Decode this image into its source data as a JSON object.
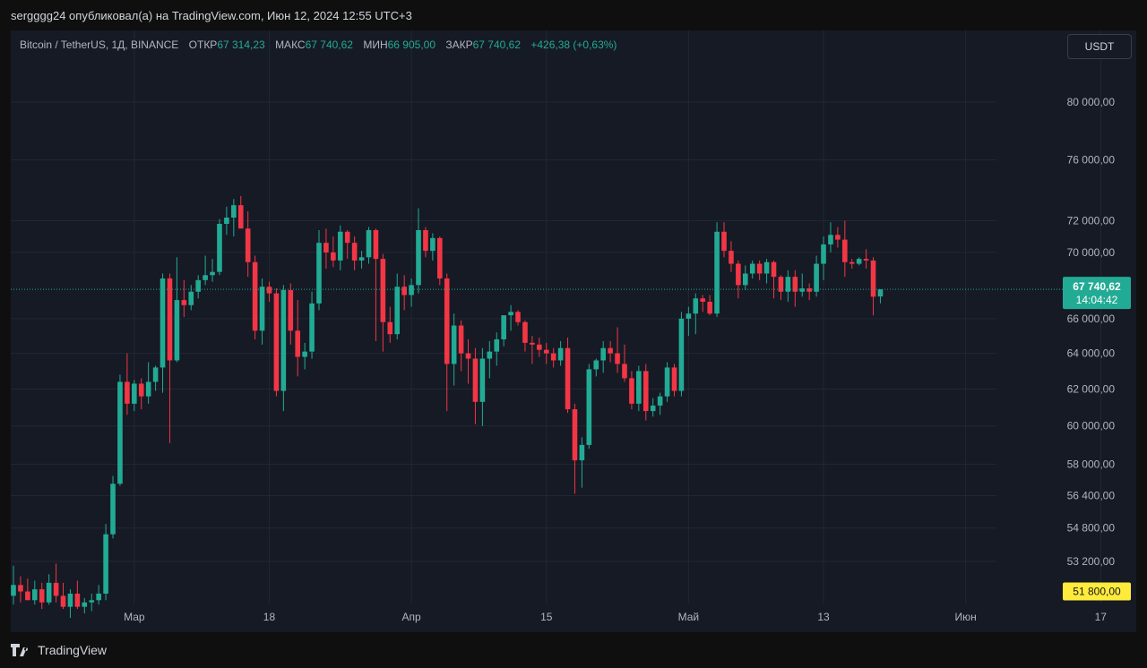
{
  "header": {
    "publisher_text": "sergggg24 опубликовал(а) на TradingView.com, Июн 12, 2024 12:55 UTC+3"
  },
  "legend": {
    "symbol": "Bitcoin / TetherUS, 1Д, BINANCE",
    "open_label": "ОТКР",
    "open_value": "67 314,23",
    "high_label": "МАКС",
    "high_value": "67 740,62",
    "low_label": "МИН",
    "low_value": "66 905,00",
    "close_label": "ЗАКР",
    "close_value": "67 740,62",
    "change": "+426,38 (+0,63%)"
  },
  "currency_button": "USDT",
  "price_badge": {
    "price": "67 740,62",
    "countdown": "14:04:42"
  },
  "crosshair_badge": "51 800,00",
  "colors": {
    "up": "#22ab94",
    "down": "#f23645",
    "background": "#161a25",
    "grid": "#232734",
    "text": "#b2b5be",
    "last_price": "#22ab94",
    "crosshair_badge": "#ffeb3b"
  },
  "footer": {
    "brand": "TradingView"
  },
  "chart_data": {
    "type": "candlestick",
    "scale": "log",
    "y_ticks": [
      "80 000,00",
      "76 000,00",
      "72 000,00",
      "70 000,00",
      "66 000,00",
      "64 000,00",
      "62 000,00",
      "60 000,00",
      "58 000,00",
      "56 400,00",
      "54 800,00",
      "53 200,00"
    ],
    "x_ticks": [
      "Мар",
      "18",
      "Апр",
      "15",
      "Май",
      "13",
      "Июн",
      "17"
    ],
    "grid": true,
    "candles": [
      {
        "o": 51600,
        "h": 53000,
        "l": 51200,
        "c": 52100
      },
      {
        "o": 52100,
        "h": 52500,
        "l": 51300,
        "c": 51800
      },
      {
        "o": 51800,
        "h": 52400,
        "l": 51400,
        "c": 51400
      },
      {
        "o": 51400,
        "h": 52300,
        "l": 51200,
        "c": 51900
      },
      {
        "o": 51900,
        "h": 52200,
        "l": 51000,
        "c": 51300
      },
      {
        "o": 51300,
        "h": 52600,
        "l": 51200,
        "c": 52200
      },
      {
        "o": 52200,
        "h": 53100,
        "l": 51300,
        "c": 51600
      },
      {
        "o": 51600,
        "h": 52200,
        "l": 51000,
        "c": 51100
      },
      {
        "o": 51100,
        "h": 51900,
        "l": 50600,
        "c": 51700
      },
      {
        "o": 51700,
        "h": 52300,
        "l": 51000,
        "c": 51100
      },
      {
        "o": 51100,
        "h": 51500,
        "l": 50800,
        "c": 51300
      },
      {
        "o": 51300,
        "h": 51700,
        "l": 50900,
        "c": 51400
      },
      {
        "o": 51400,
        "h": 52100,
        "l": 51200,
        "c": 51700
      },
      {
        "o": 51700,
        "h": 55000,
        "l": 51400,
        "c": 54500
      },
      {
        "o": 54500,
        "h": 57400,
        "l": 54300,
        "c": 57000
      },
      {
        "o": 57000,
        "h": 62800,
        "l": 56900,
        "c": 62400
      },
      {
        "o": 62400,
        "h": 64000,
        "l": 60600,
        "c": 61200
      },
      {
        "o": 61200,
        "h": 62500,
        "l": 60800,
        "c": 62300
      },
      {
        "o": 62300,
        "h": 62600,
        "l": 60900,
        "c": 61600
      },
      {
        "o": 61600,
        "h": 63500,
        "l": 61200,
        "c": 62400
      },
      {
        "o": 62400,
        "h": 63300,
        "l": 61900,
        "c": 63200
      },
      {
        "o": 63200,
        "h": 68700,
        "l": 61800,
        "c": 68400
      },
      {
        "o": 68400,
        "h": 68700,
        "l": 59100,
        "c": 63600
      },
      {
        "o": 63600,
        "h": 69700,
        "l": 63500,
        "c": 67100
      },
      {
        "o": 67100,
        "h": 68300,
        "l": 66100,
        "c": 66800
      },
      {
        "o": 66800,
        "h": 68000,
        "l": 66500,
        "c": 67600
      },
      {
        "o": 67600,
        "h": 68600,
        "l": 67200,
        "c": 68300
      },
      {
        "o": 68300,
        "h": 69800,
        "l": 68000,
        "c": 68600
      },
      {
        "o": 68600,
        "h": 69600,
        "l": 68200,
        "c": 68800
      },
      {
        "o": 68800,
        "h": 72100,
        "l": 68600,
        "c": 71800
      },
      {
        "o": 71800,
        "h": 72900,
        "l": 71100,
        "c": 72200
      },
      {
        "o": 72200,
        "h": 73400,
        "l": 71000,
        "c": 73000
      },
      {
        "o": 73000,
        "h": 73600,
        "l": 71700,
        "c": 71500
      },
      {
        "o": 71500,
        "h": 72600,
        "l": 68500,
        "c": 69400
      },
      {
        "o": 69400,
        "h": 69800,
        "l": 64800,
        "c": 65300
      },
      {
        "o": 65300,
        "h": 68400,
        "l": 64500,
        "c": 67900
      },
      {
        "o": 67900,
        "h": 68200,
        "l": 67000,
        "c": 67500
      },
      {
        "o": 67500,
        "h": 67800,
        "l": 61600,
        "c": 61900
      },
      {
        "o": 61900,
        "h": 68000,
        "l": 60800,
        "c": 67700
      },
      {
        "o": 67700,
        "h": 68100,
        "l": 64500,
        "c": 65300
      },
      {
        "o": 65300,
        "h": 67100,
        "l": 62700,
        "c": 63800
      },
      {
        "o": 63800,
        "h": 64600,
        "l": 63100,
        "c": 64100
      },
      {
        "o": 64100,
        "h": 67600,
        "l": 63700,
        "c": 66900
      },
      {
        "o": 66900,
        "h": 71400,
        "l": 66500,
        "c": 70600
      },
      {
        "o": 70600,
        "h": 71500,
        "l": 69000,
        "c": 70000
      },
      {
        "o": 70000,
        "h": 71000,
        "l": 69100,
        "c": 69500
      },
      {
        "o": 69500,
        "h": 71700,
        "l": 68900,
        "c": 71300
      },
      {
        "o": 71300,
        "h": 71400,
        "l": 69600,
        "c": 70600
      },
      {
        "o": 70600,
        "h": 71000,
        "l": 68900,
        "c": 69500
      },
      {
        "o": 69500,
        "h": 70100,
        "l": 69000,
        "c": 69700
      },
      {
        "o": 69700,
        "h": 71600,
        "l": 69300,
        "c": 71400
      },
      {
        "o": 71400,
        "h": 71500,
        "l": 64700,
        "c": 69600
      },
      {
        "o": 69600,
        "h": 69900,
        "l": 64100,
        "c": 65800
      },
      {
        "o": 65800,
        "h": 66700,
        "l": 64600,
        "c": 65100
      },
      {
        "o": 65100,
        "h": 68700,
        "l": 64800,
        "c": 67900
      },
      {
        "o": 67900,
        "h": 68600,
        "l": 66500,
        "c": 67400
      },
      {
        "o": 67400,
        "h": 68400,
        "l": 66700,
        "c": 68000
      },
      {
        "o": 68000,
        "h": 72800,
        "l": 67500,
        "c": 71400
      },
      {
        "o": 71400,
        "h": 71600,
        "l": 69700,
        "c": 70100
      },
      {
        "o": 70100,
        "h": 71200,
        "l": 69500,
        "c": 70900
      },
      {
        "o": 70900,
        "h": 71000,
        "l": 68000,
        "c": 68400
      },
      {
        "o": 68400,
        "h": 68700,
        "l": 60800,
        "c": 63400
      },
      {
        "o": 63400,
        "h": 66300,
        "l": 62200,
        "c": 65600
      },
      {
        "o": 65600,
        "h": 65900,
        "l": 63000,
        "c": 64000
      },
      {
        "o": 64000,
        "h": 64800,
        "l": 62300,
        "c": 63700
      },
      {
        "o": 63700,
        "h": 64300,
        "l": 60100,
        "c": 61300
      },
      {
        "o": 61300,
        "h": 64300,
        "l": 60000,
        "c": 63700
      },
      {
        "o": 63700,
        "h": 64700,
        "l": 62600,
        "c": 64100
      },
      {
        "o": 64100,
        "h": 65200,
        "l": 63300,
        "c": 64800
      },
      {
        "o": 64800,
        "h": 66200,
        "l": 64400,
        "c": 66200
      },
      {
        "o": 66200,
        "h": 66800,
        "l": 65300,
        "c": 66400
      },
      {
        "o": 66400,
        "h": 66500,
        "l": 65600,
        "c": 65800
      },
      {
        "o": 65800,
        "h": 65900,
        "l": 64100,
        "c": 64600
      },
      {
        "o": 64600,
        "h": 65000,
        "l": 63400,
        "c": 64500
      },
      {
        "o": 64500,
        "h": 64900,
        "l": 63800,
        "c": 64200
      },
      {
        "o": 64200,
        "h": 64600,
        "l": 63400,
        "c": 64000
      },
      {
        "o": 64000,
        "h": 64300,
        "l": 63200,
        "c": 63600
      },
      {
        "o": 63600,
        "h": 64700,
        "l": 63300,
        "c": 64300
      },
      {
        "o": 64300,
        "h": 64900,
        "l": 60700,
        "c": 60900
      },
      {
        "o": 60900,
        "h": 61200,
        "l": 56500,
        "c": 58200
      },
      {
        "o": 58200,
        "h": 59400,
        "l": 56800,
        "c": 59000
      },
      {
        "o": 59000,
        "h": 63400,
        "l": 58800,
        "c": 63100
      },
      {
        "o": 63100,
        "h": 63700,
        "l": 62700,
        "c": 63600
      },
      {
        "o": 63600,
        "h": 64700,
        "l": 62900,
        "c": 64300
      },
      {
        "o": 64300,
        "h": 64700,
        "l": 63500,
        "c": 64000
      },
      {
        "o": 64000,
        "h": 65500,
        "l": 62900,
        "c": 63400
      },
      {
        "o": 63400,
        "h": 64500,
        "l": 62400,
        "c": 62600
      },
      {
        "o": 62600,
        "h": 63000,
        "l": 60900,
        "c": 61200
      },
      {
        "o": 61200,
        "h": 63300,
        "l": 60800,
        "c": 63000
      },
      {
        "o": 63000,
        "h": 63400,
        "l": 60300,
        "c": 60800
      },
      {
        "o": 60800,
        "h": 61500,
        "l": 60500,
        "c": 61100
      },
      {
        "o": 61100,
        "h": 61800,
        "l": 60600,
        "c": 61600
      },
      {
        "o": 61600,
        "h": 63500,
        "l": 61300,
        "c": 63200
      },
      {
        "o": 63200,
        "h": 63400,
        "l": 61600,
        "c": 61900
      },
      {
        "o": 61900,
        "h": 66400,
        "l": 61600,
        "c": 66000
      },
      {
        "o": 66000,
        "h": 66700,
        "l": 65000,
        "c": 66300
      },
      {
        "o": 66300,
        "h": 67500,
        "l": 65100,
        "c": 67200
      },
      {
        "o": 67200,
        "h": 67400,
        "l": 66400,
        "c": 67000
      },
      {
        "o": 67000,
        "h": 67400,
        "l": 66200,
        "c": 66300
      },
      {
        "o": 66300,
        "h": 71900,
        "l": 66100,
        "c": 71300
      },
      {
        "o": 71300,
        "h": 71900,
        "l": 69700,
        "c": 70100
      },
      {
        "o": 70100,
        "h": 70700,
        "l": 68800,
        "c": 69300
      },
      {
        "o": 69300,
        "h": 69500,
        "l": 67200,
        "c": 68000
      },
      {
        "o": 68000,
        "h": 69200,
        "l": 67700,
        "c": 68700
      },
      {
        "o": 68700,
        "h": 69500,
        "l": 68400,
        "c": 69300
      },
      {
        "o": 69300,
        "h": 69500,
        "l": 68300,
        "c": 68700
      },
      {
        "o": 68700,
        "h": 69600,
        "l": 68100,
        "c": 69400
      },
      {
        "o": 69400,
        "h": 69500,
        "l": 67200,
        "c": 68500
      },
      {
        "o": 68500,
        "h": 68600,
        "l": 67100,
        "c": 67600
      },
      {
        "o": 67600,
        "h": 68900,
        "l": 67000,
        "c": 68500
      },
      {
        "o": 68500,
        "h": 68900,
        "l": 66700,
        "c": 67600
      },
      {
        "o": 67600,
        "h": 68700,
        "l": 67300,
        "c": 67800
      },
      {
        "o": 67800,
        "h": 68100,
        "l": 67100,
        "c": 67600
      },
      {
        "o": 67600,
        "h": 69800,
        "l": 67300,
        "c": 69300
      },
      {
        "o": 69300,
        "h": 71000,
        "l": 68300,
        "c": 70500
      },
      {
        "o": 70500,
        "h": 71900,
        "l": 70000,
        "c": 71100
      },
      {
        "o": 71100,
        "h": 71600,
        "l": 70300,
        "c": 70800
      },
      {
        "o": 70800,
        "h": 72000,
        "l": 68500,
        "c": 69400
      },
      {
        "o": 69400,
        "h": 69600,
        "l": 69000,
        "c": 69300
      },
      {
        "o": 69300,
        "h": 69700,
        "l": 69200,
        "c": 69600
      },
      {
        "o": 69600,
        "h": 70200,
        "l": 69000,
        "c": 69500
      },
      {
        "o": 69500,
        "h": 69700,
        "l": 66200,
        "c": 67300
      },
      {
        "o": 67314,
        "h": 67741,
        "l": 66905,
        "c": 67741
      }
    ]
  }
}
